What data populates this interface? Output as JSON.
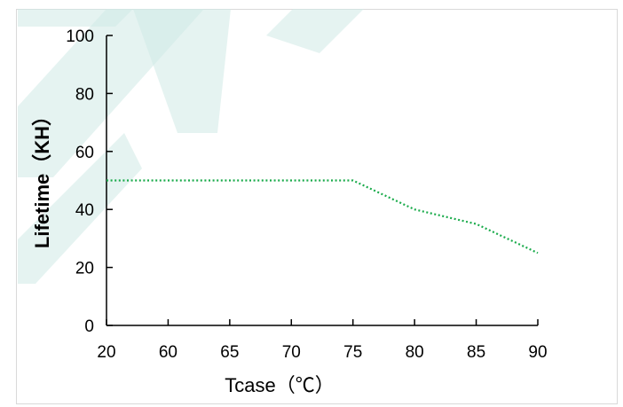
{
  "chart_data": {
    "type": "line",
    "title": "",
    "xlabel": "Tcase（℃）",
    "ylabel": "Lifetime（KH）",
    "categories": [
      "20",
      "60",
      "65",
      "70",
      "75",
      "80",
      "85",
      "90"
    ],
    "x": [
      20,
      60,
      65,
      70,
      75,
      80,
      85,
      90
    ],
    "series": [
      {
        "values": [
          50,
          50,
          50,
          50,
          50,
          40,
          35,
          25
        ]
      }
    ],
    "ylim": [
      0,
      100
    ],
    "yticks": [
      0,
      20,
      40,
      60,
      80,
      100
    ],
    "grid": false,
    "legend": "none",
    "line_color": "#1aab4b",
    "line_style": "dotted",
    "watermark_color": "#cfe9e6"
  }
}
